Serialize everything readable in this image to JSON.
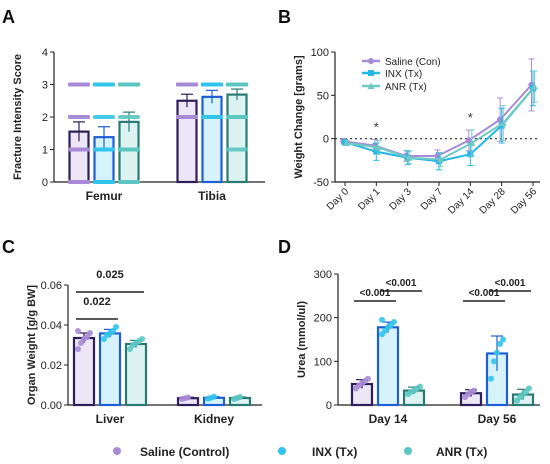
{
  "legend": [
    {
      "label": "Saline (Control)",
      "color": "#a78bd6"
    },
    {
      "label": "INX (Tx)",
      "color": "#31c4ec"
    },
    {
      "label": "ANR (Tx)",
      "color": "#5bc6c1"
    }
  ],
  "colors": {
    "saline_edge": "#2e1e5a",
    "saline_fill": "#ece6f7",
    "saline_dot": "#a78bd6",
    "inx_edge": "#1f5fd6",
    "inx_fill": "#d6f3fc",
    "inx_dot": "#31c4ec",
    "anr_edge": "#2a7a74",
    "anr_fill": "#dcf3f1",
    "anr_dot": "#5bc6c1",
    "line_saline": "#a78bd6",
    "line_inx": "#25b7e6",
    "line_anr": "#6ec9c4"
  },
  "chart_data": [
    {
      "panel": "A",
      "type": "bar",
      "ylabel": "Fracture Intensity Score",
      "ylim": [
        0,
        4
      ],
      "yticks": [
        "0",
        "1",
        "2",
        "3",
        "4"
      ],
      "categories": [
        "Femur",
        "Tibia"
      ],
      "series": [
        {
          "name": "Saline (Control)",
          "values": [
            1.55,
            2.5
          ],
          "errors": [
            0.3,
            0.2
          ]
        },
        {
          "name": "INX (Tx)",
          "values": [
            1.38,
            2.62
          ],
          "errors": [
            0.32,
            0.2
          ]
        },
        {
          "name": "ANR (Tx)",
          "values": [
            1.85,
            2.69
          ],
          "errors": [
            0.3,
            0.17
          ]
        }
      ],
      "points": [
        [
          [
            0,
            0,
            0,
            1,
            1,
            1,
            2,
            2,
            2,
            2,
            3,
            3,
            3,
            3
          ],
          [
            2,
            2,
            2,
            2,
            3,
            3,
            3,
            3,
            3,
            3,
            3,
            3,
            3,
            3
          ]
        ],
        [
          [
            0,
            0,
            0,
            0,
            0,
            1,
            1,
            1,
            2,
            3,
            3,
            3,
            3
          ],
          [
            2,
            2,
            2,
            2,
            3,
            3,
            3,
            3,
            3,
            3,
            3,
            3,
            3
          ]
        ],
        [
          [
            0,
            0,
            1,
            1,
            1,
            1,
            2,
            3,
            3,
            3,
            3,
            3,
            3
          ],
          [
            1,
            2,
            2,
            3,
            3,
            3,
            3,
            3,
            3,
            3,
            3,
            3,
            3
          ]
        ]
      ]
    },
    {
      "panel": "B",
      "type": "line",
      "ylabel": "Weight Change [grams]",
      "ylim": [
        -50,
        100
      ],
      "yticks": [
        "-50",
        "0",
        "50",
        "100"
      ],
      "categories": [
        "Day 0",
        "Day 1",
        "Day 3",
        "Day 7",
        "Day 14",
        "Day 28",
        "Day 56"
      ],
      "annotations": [
        "*",
        "*"
      ],
      "series": [
        {
          "name": "Saline (Con)",
          "values": [
            -3,
            -8,
            -20,
            -20,
            -2,
            22,
            62
          ],
          "errors": [
            3,
            7,
            6,
            7,
            12,
            25,
            30
          ]
        },
        {
          "name": "INX (Tx)",
          "values": [
            -4,
            -15,
            -22,
            -26,
            -18,
            15,
            58
          ],
          "errors": [
            3,
            10,
            8,
            10,
            13,
            20,
            20
          ]
        },
        {
          "name": "ANR (Tx)",
          "values": [
            -5,
            -10,
            -22,
            -24,
            -5,
            18,
            60
          ],
          "errors": [
            3,
            8,
            7,
            8,
            15,
            20,
            18
          ]
        }
      ]
    },
    {
      "panel": "C",
      "type": "bar",
      "ylabel": "Organ Weight [g/g BW]",
      "ylim": [
        0,
        0.06
      ],
      "yticks": [
        "0.00",
        "0.02",
        "0.04",
        "0.06"
      ],
      "categories": [
        "Liver",
        "Kidney"
      ],
      "series": [
        {
          "name": "Saline (Control)",
          "values": [
            0.0335,
            0.0034
          ],
          "errors": [
            0.0025,
            0.0005
          ]
        },
        {
          "name": "INX (Tx)",
          "values": [
            0.0358,
            0.0036
          ],
          "errors": [
            0.002,
            0.0005
          ]
        },
        {
          "name": "ANR (Tx)",
          "values": [
            0.0305,
            0.0035
          ],
          "errors": [
            0.0018,
            0.0005
          ]
        }
      ],
      "points": [
        [
          [
            0.028,
            0.031,
            0.033,
            0.034,
            0.036,
            0.037
          ],
          [
            0.003,
            0.0034,
            0.0038
          ]
        ],
        [
          [
            0.033,
            0.035,
            0.036,
            0.037,
            0.039
          ],
          [
            0.0031,
            0.0036,
            0.0041
          ]
        ],
        [
          [
            0.028,
            0.03,
            0.031,
            0.032,
            0.033
          ],
          [
            0.003,
            0.0035,
            0.004
          ]
        ]
      ],
      "significance": [
        {
          "label": "0.022",
          "from": 0,
          "to": 1
        },
        {
          "label": "0.025",
          "from": 0,
          "to": 2
        }
      ]
    },
    {
      "panel": "D",
      "type": "bar",
      "ylabel": "Urea (mmol/ul)",
      "ylim": [
        0,
        300
      ],
      "yticks": [
        "0",
        "100",
        "200",
        "300"
      ],
      "categories": [
        "Day 14",
        "Day 56"
      ],
      "series": [
        {
          "name": "Saline (Control)",
          "values": [
            48,
            27
          ],
          "errors": [
            10,
            8
          ]
        },
        {
          "name": "INX (Tx)",
          "values": [
            178,
            118
          ],
          "errors": [
            12,
            40
          ]
        },
        {
          "name": "ANR (Tx)",
          "values": [
            33,
            24
          ],
          "errors": [
            8,
            12
          ]
        }
      ],
      "points": [
        [
          [
            38,
            45,
            50,
            55,
            60
          ],
          [
            18,
            25,
            30,
            33
          ]
        ],
        [
          [
            162,
            170,
            178,
            183,
            190,
            195
          ],
          [
            60,
            100,
            120,
            140,
            150
          ]
        ],
        [
          [
            25,
            30,
            33,
            38,
            42
          ],
          [
            10,
            18,
            25,
            30,
            38
          ]
        ]
      ],
      "significance": [
        {
          "label": "<0.001",
          "group": 0,
          "from": 0,
          "to": 1,
          "level": 0
        },
        {
          "label": "<0.001",
          "group": 0,
          "from": 1,
          "to": 2,
          "level": 1
        },
        {
          "label": "<0.001",
          "group": 1,
          "from": 0,
          "to": 1,
          "level": 0
        },
        {
          "label": "<0.001",
          "group": 1,
          "from": 1,
          "to": 2,
          "level": 1
        }
      ]
    }
  ]
}
